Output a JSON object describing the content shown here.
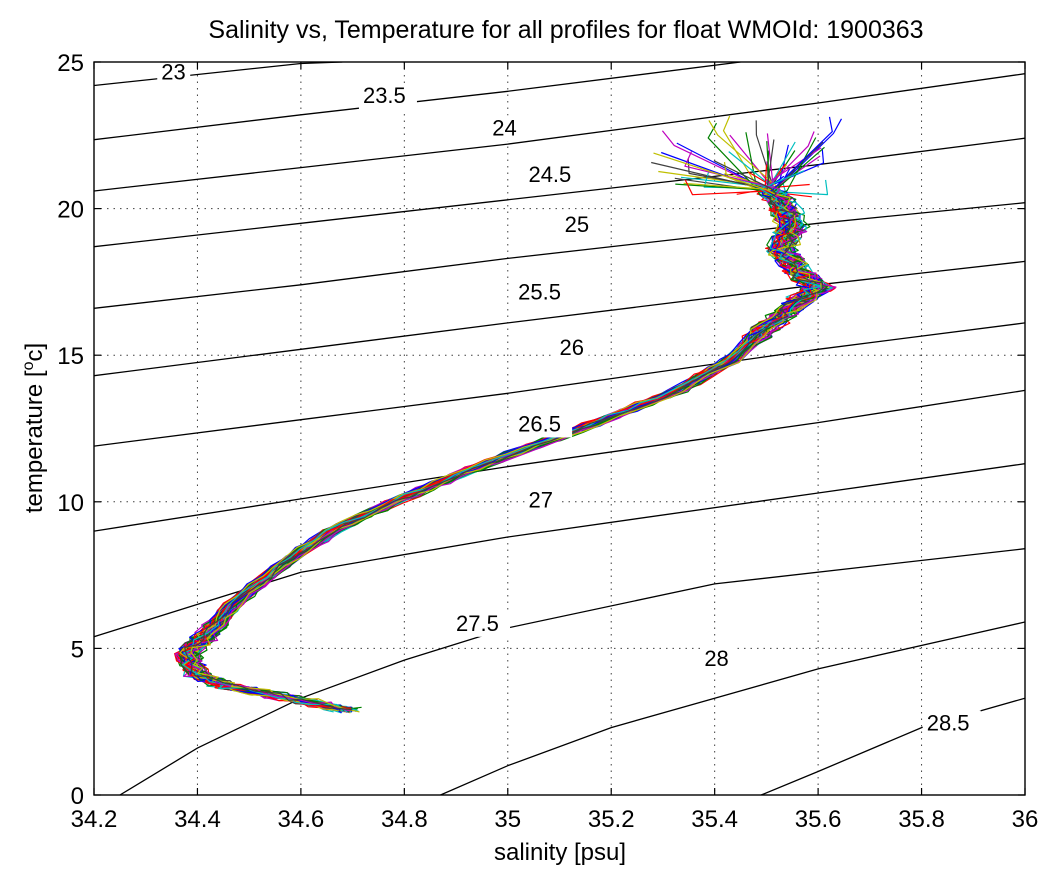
{
  "chart_data": {
    "type": "line",
    "title": "Salinity vs, Temperature for all profiles for float WMOId: 1900363",
    "xlabel": "salinity [psu]",
    "ylabel_main": "temperature [",
    "ylabel_sup": "o",
    "ylabel_tail": "c]",
    "xlim": [
      34.2,
      36
    ],
    "ylim": [
      0,
      25
    ],
    "xticks": [
      "34.2",
      "34.4",
      "34.6",
      "34.8",
      "35",
      "35.2",
      "35.4",
      "35.6",
      "35.8",
      "36"
    ],
    "yticks": [
      "0",
      "5",
      "10",
      "15",
      "20",
      "25"
    ],
    "grid": true,
    "isopycnals": [
      {
        "label": "23",
        "points": [
          [
            34.2,
            24.2
          ],
          [
            34.6,
            24.95
          ],
          [
            34.68,
            25.0
          ]
        ],
        "label_at": [
          34.33,
          24.4
        ]
      },
      {
        "label": "23.5",
        "points": [
          [
            34.2,
            22.35
          ],
          [
            34.6,
            23.2
          ],
          [
            35.0,
            24.0
          ],
          [
            35.45,
            25.0
          ]
        ],
        "label_at": [
          34.72,
          23.6
        ]
      },
      {
        "label": "24",
        "points": [
          [
            34.2,
            20.6
          ],
          [
            34.6,
            21.4
          ],
          [
            35.0,
            22.2
          ],
          [
            35.6,
            23.6
          ],
          [
            36.0,
            24.6
          ]
        ],
        "label_at": [
          34.97,
          22.5
        ]
      },
      {
        "label": "24.5",
        "points": [
          [
            34.2,
            18.7
          ],
          [
            34.6,
            19.5
          ],
          [
            35.0,
            20.3
          ],
          [
            35.6,
            21.5
          ],
          [
            36.0,
            22.4
          ]
        ],
        "label_at": [
          35.04,
          20.9
        ]
      },
      {
        "label": "25",
        "points": [
          [
            34.2,
            16.6
          ],
          [
            34.6,
            17.4
          ],
          [
            35.0,
            18.3
          ],
          [
            35.6,
            19.5
          ],
          [
            36.0,
            20.2
          ]
        ],
        "label_at": [
          35.11,
          19.2
        ]
      },
      {
        "label": "25.5",
        "points": [
          [
            34.2,
            14.3
          ],
          [
            34.6,
            15.2
          ],
          [
            35.0,
            16.1
          ],
          [
            35.6,
            17.4
          ],
          [
            36.0,
            18.2
          ]
        ],
        "label_at": [
          35.02,
          16.9
        ]
      },
      {
        "label": "26",
        "points": [
          [
            34.2,
            11.9
          ],
          [
            34.6,
            12.8
          ],
          [
            35.0,
            13.7
          ],
          [
            35.6,
            15.2
          ],
          [
            36.0,
            16.1
          ]
        ],
        "label_at": [
          35.1,
          15.0
        ]
      },
      {
        "label": "26.5",
        "points": [
          [
            34.2,
            9.0
          ],
          [
            34.6,
            10.1
          ],
          [
            35.0,
            11.2
          ],
          [
            35.6,
            12.7
          ],
          [
            36.0,
            13.8
          ]
        ],
        "label_at": [
          35.02,
          12.4
        ]
      },
      {
        "label": "27",
        "points": [
          [
            34.2,
            5.4
          ],
          [
            34.4,
            6.5
          ],
          [
            34.6,
            7.6
          ],
          [
            35.0,
            8.8
          ],
          [
            35.6,
            10.3
          ],
          [
            36.0,
            11.3
          ]
        ],
        "label_at": [
          35.04,
          9.8
        ]
      },
      {
        "label": "27.5",
        "points": [
          [
            34.25,
            0.0
          ],
          [
            34.4,
            1.6
          ],
          [
            34.6,
            3.3
          ],
          [
            34.8,
            4.6
          ],
          [
            35.0,
            5.7
          ],
          [
            35.4,
            7.2
          ],
          [
            36.0,
            8.4
          ]
        ],
        "label_at": [
          34.9,
          5.6
        ]
      },
      {
        "label": "28",
        "points": [
          [
            34.87,
            0.0
          ],
          [
            35.0,
            1.0
          ],
          [
            35.2,
            2.3
          ],
          [
            35.4,
            3.3
          ],
          [
            35.6,
            4.3
          ],
          [
            36.0,
            5.9
          ]
        ],
        "label_at": [
          35.38,
          4.4
        ]
      },
      {
        "label": "28.5",
        "points": [
          [
            35.49,
            0.0
          ],
          [
            35.6,
            0.8
          ],
          [
            35.8,
            2.3
          ],
          [
            36.0,
            3.3
          ]
        ],
        "label_at": [
          35.81,
          2.2
        ]
      }
    ],
    "profile_template": [
      [
        34.69,
        2.9
      ],
      [
        34.58,
        3.3
      ],
      [
        34.46,
        3.7
      ],
      [
        34.4,
        4.1
      ],
      [
        34.38,
        4.8
      ],
      [
        34.42,
        5.5
      ],
      [
        34.47,
        6.5
      ],
      [
        34.56,
        7.8
      ],
      [
        34.66,
        9.0
      ],
      [
        34.78,
        10.0
      ],
      [
        34.9,
        10.9
      ],
      [
        35.05,
        11.9
      ],
      [
        35.2,
        12.9
      ],
      [
        35.33,
        13.8
      ],
      [
        35.43,
        14.8
      ],
      [
        35.5,
        15.9
      ],
      [
        35.56,
        16.8
      ],
      [
        35.6,
        17.3
      ],
      [
        35.56,
        17.9
      ],
      [
        35.53,
        18.6
      ],
      [
        35.55,
        19.4
      ],
      [
        35.53,
        20.2
      ],
      [
        35.5,
        20.8
      ]
    ],
    "profile_colors": [
      "#0000ff",
      "#008000",
      "#ff0000",
      "#00bfbf",
      "#bf00bf",
      "#bfbf00",
      "#404040"
    ],
    "profile_count": 56
  }
}
